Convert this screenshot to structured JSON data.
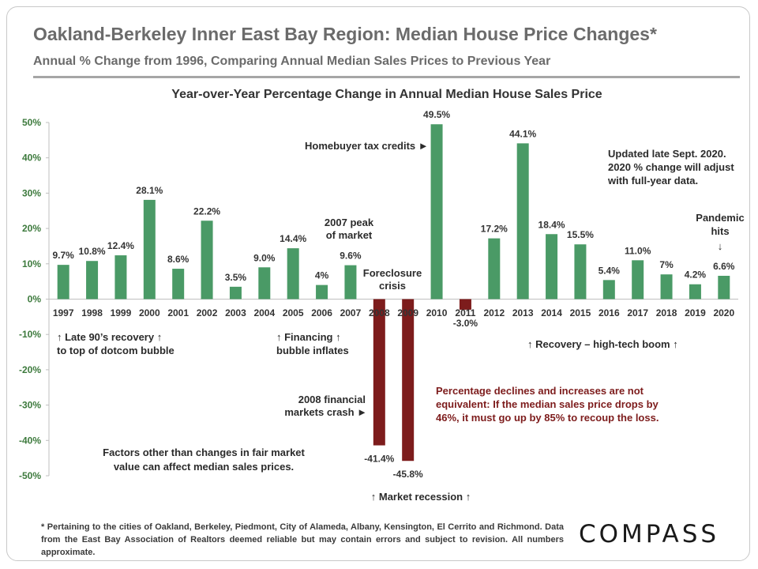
{
  "header": {
    "title": "Oakland-Berkeley Inner East Bay Region: Median House Price Changes*",
    "subtitle": "Annual % Change from 1996, Comparing Annual Median Sales Prices to Previous Year"
  },
  "chart_data": {
    "type": "bar",
    "title": "Year-over-Year Percentage Change in Annual Median House Sales Price",
    "categories": [
      "1997",
      "1998",
      "1999",
      "2000",
      "2001",
      "2002",
      "2003",
      "2004",
      "2005",
      "2006",
      "2007",
      "2008",
      "2009",
      "2010",
      "2011",
      "2012",
      "2013",
      "2014",
      "2015",
      "2016",
      "2017",
      "2018",
      "2019",
      "2020"
    ],
    "values": [
      9.7,
      10.8,
      12.4,
      28.1,
      8.6,
      22.2,
      3.5,
      9.0,
      14.4,
      4,
      9.6,
      -41.4,
      -45.8,
      49.5,
      -3.0,
      17.2,
      44.1,
      18.4,
      15.5,
      5.4,
      11.0,
      7,
      4.2,
      6.6
    ],
    "value_labels": [
      "9.7%",
      "10.8%",
      "12.4%",
      "28.1%",
      "8.6%",
      "22.2%",
      "3.5%",
      "9.0%",
      "14.4%",
      "4%",
      "9.6%",
      "-41.4%",
      "-45.8%",
      "49.5%",
      "-3.0%",
      "17.2%",
      "44.1%",
      "18.4%",
      "15.5%",
      "5.4%",
      "11.0%",
      "7%",
      "4.2%",
      "6.6%"
    ],
    "y_ticks": [
      50,
      40,
      30,
      20,
      10,
      0,
      -10,
      -20,
      -30,
      -40,
      -50
    ],
    "y_tick_labels": [
      "50%",
      "40%",
      "30%",
      "20%",
      "10%",
      "0%",
      "-10%",
      "-20%",
      "-30%",
      "-40%",
      "-50%"
    ],
    "ylim": [
      -50,
      50
    ],
    "xlabel": "",
    "ylabel": "",
    "grid": false,
    "legend": false,
    "colors": {
      "positive": "#4a9a66",
      "negative": "#7d1c1c",
      "axis_labels": "#3d7a3d"
    },
    "annotations": {
      "late90s": "↑ Late 90’s recovery ↑",
      "late90s_2": "to top of dotcom bubble",
      "financing": "↑ Financing ↑",
      "financing_2": "bubble inflates",
      "peak": "2007 peak",
      "peak_2": "of market",
      "foreclosure": "Foreclosure",
      "foreclosure_2": "crisis",
      "taxcredit": "Homebuyer tax credits ►",
      "updated": "Updated late Sept. 2020.",
      "updated_2": "2020 % change will adjust",
      "updated_3": "with full-year data.",
      "pandemic": "Pandemic",
      "pandemic_2": "hits",
      "pandemic_arrow": "↓",
      "recovery": "↑  Recovery – high-tech boom ↑",
      "crash": "2008 financial",
      "crash_2": "markets crash ►",
      "decline": "Percentage declines and increases are not",
      "decline_2": "equivalent: If the median sales price drops by",
      "decline_3": "46%, it must go up by 85% to recoup the loss.",
      "factors": "Factors other than changes in fair market",
      "factors_2": "value can affect median sales prices.",
      "recession": "↑  Market recession  ↑"
    }
  },
  "footnote": "* Pertaining to the cities of Oakland, Berkeley, Piedmont, City of Alameda, Albany, Kensington, El Cerrito and Richmond. Data from the East Bay Association of Realtors deemed reliable but may contain errors and subject to revision. All numbers approximate.",
  "logo": "COMPASS"
}
